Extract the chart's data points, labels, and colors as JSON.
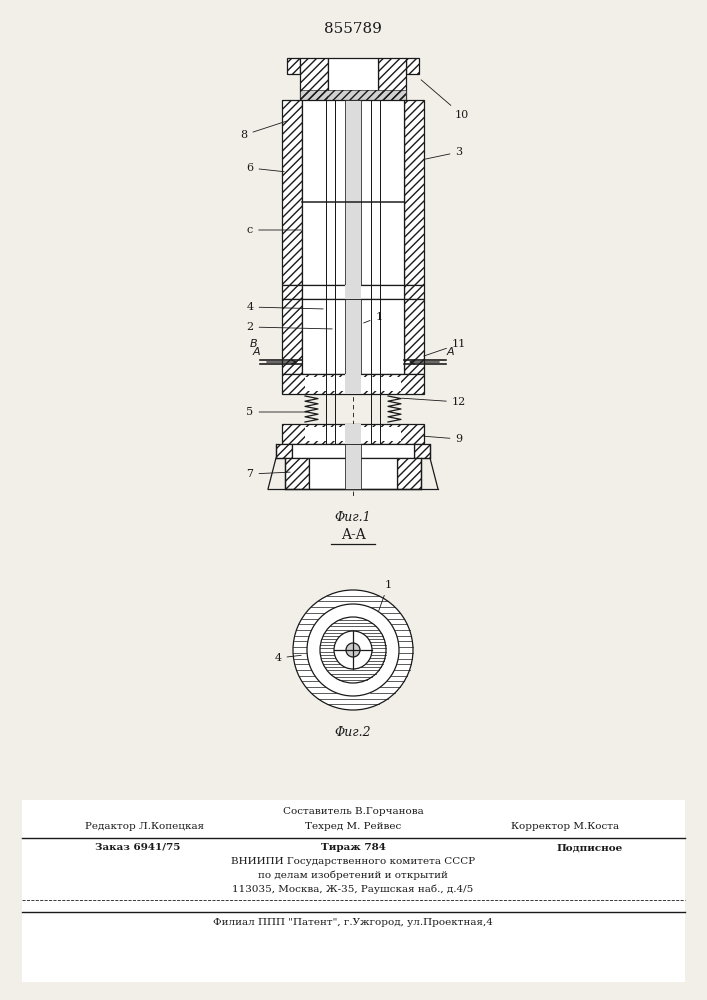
{
  "patent_number": "855789",
  "fig1_caption": "Φиг.1",
  "fig2_caption": "Φиг.2",
  "section_label": "A-A",
  "footer_line1": "Составитель В.Горчанова",
  "footer_line2_left": "Редактор Л.Копецкая",
  "footer_line2_mid": "Техред М. Рейвес",
  "footer_line2_right": "Корректор М.Коста",
  "footer_line3_left": "Заказ 6941/75",
  "footer_line3_mid": "Тираж 784",
  "footer_line3_right": "Подписное",
  "footer_line4": "ВНИИПИ Государственного комитета СССР",
  "footer_line5": "по делам изобретений и открытий",
  "footer_line6": "113035, Москва, Ж-35, Раушская наб., д.4/5",
  "footer_line7": "Филиал ППП \"Патент\", г.Ужгород, ул.Проектная,4",
  "bg_color": "#f2efe9",
  "line_color": "#1a1a1a"
}
